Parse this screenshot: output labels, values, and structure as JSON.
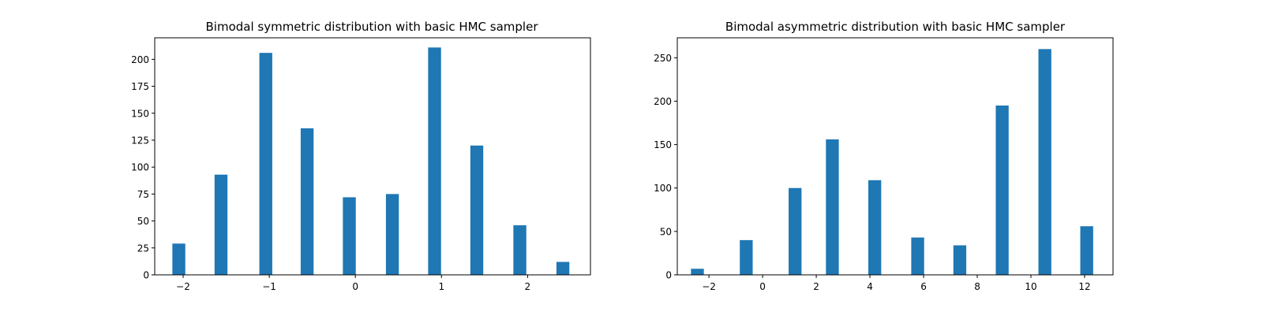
{
  "chart_data": [
    {
      "type": "bar",
      "title": "Bimodal symmetric distribution with basic HMC sampler",
      "xlabel": "",
      "ylabel": "",
      "xlim": [
        -2.33,
        2.73
      ],
      "ylim": [
        0,
        220
      ],
      "bar_width": 0.15,
      "color": "#1f77b4",
      "grid": false,
      "x_ticks": [
        -2,
        -1,
        0,
        1,
        2
      ],
      "x_tick_labels": [
        "−2",
        "−1",
        "0",
        "1",
        "2"
      ],
      "y_ticks": [
        0,
        25,
        50,
        75,
        100,
        125,
        150,
        175,
        200
      ],
      "y_tick_labels": [
        "0",
        "25",
        "50",
        "75",
        "100",
        "125",
        "150",
        "175",
        "200"
      ],
      "x": [
        -2.05,
        -1.56,
        -1.04,
        -0.56,
        -0.07,
        0.43,
        0.92,
        1.41,
        1.91,
        2.41
      ],
      "values": [
        29,
        93,
        206,
        136,
        72,
        75,
        211,
        120,
        46,
        12
      ]
    },
    {
      "type": "bar",
      "title": "Bimodal asymmetric distribution with basic HMC sampler",
      "xlabel": "",
      "ylabel": "",
      "xlim": [
        -3.18,
        13.06
      ],
      "ylim": [
        0,
        273
      ],
      "bar_width": 0.48,
      "color": "#1f77b4",
      "grid": false,
      "x_ticks": [
        -2,
        0,
        2,
        4,
        6,
        8,
        10,
        12
      ],
      "x_tick_labels": [
        "−2",
        "0",
        "2",
        "4",
        "6",
        "8",
        "10",
        "12"
      ],
      "y_ticks": [
        0,
        50,
        100,
        150,
        200,
        250
      ],
      "y_tick_labels": [
        "0",
        "50",
        "100",
        "150",
        "200",
        "250"
      ],
      "x": [
        -2.43,
        -0.61,
        1.21,
        2.6,
        4.18,
        5.78,
        7.35,
        8.93,
        10.52,
        12.08
      ],
      "values": [
        7,
        40,
        100,
        156,
        109,
        43,
        34,
        195,
        260,
        56
      ]
    }
  ]
}
